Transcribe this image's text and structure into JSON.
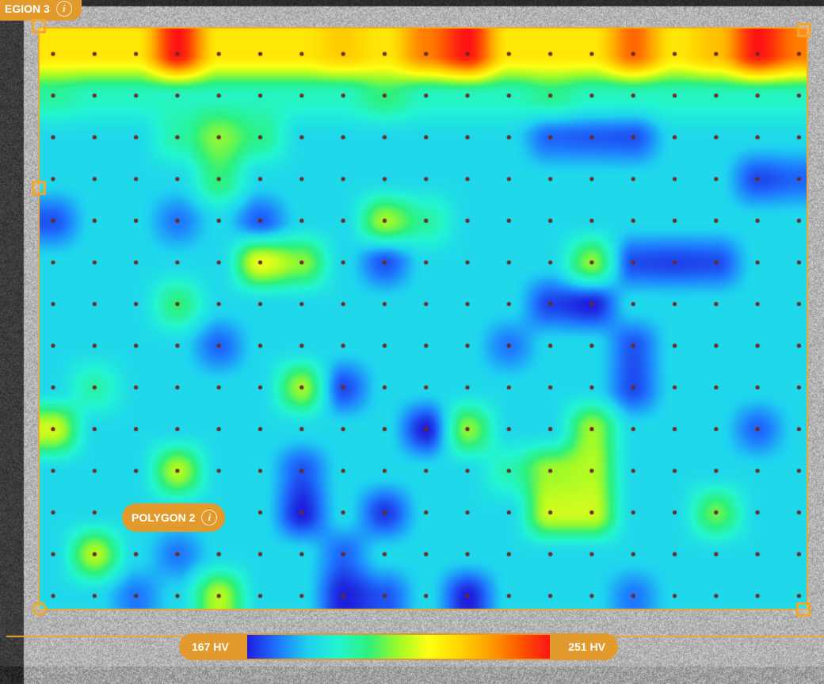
{
  "region_label": {
    "text": "EGION 3",
    "info_icon": "info-icon"
  },
  "polygon_label": {
    "text": "POLYGON 2",
    "info_icon": "info-icon"
  },
  "scale": {
    "min_label": "167 HV",
    "max_label": "251 HV",
    "min_value": 167,
    "max_value": 251,
    "colors": [
      "#1E1EDC",
      "#1E78FF",
      "#1ED2F0",
      "#23F5D2",
      "#2DF07D",
      "#A0FA28",
      "#FFFF14",
      "#FFD700",
      "#FFA000",
      "#FF5A00",
      "#FF1414"
    ]
  },
  "colors": {
    "accent": "#E39A2D",
    "handle": "#F2A62E",
    "dot": "#6A2A2A"
  },
  "heatmap": {
    "rows": 14,
    "cols": 19,
    "background_level": 0.22,
    "top_row_level": 0.66,
    "second_row_level": 0.32,
    "hotspots": [
      {
        "r": 0,
        "c": 3,
        "v": 1.0
      },
      {
        "r": 0,
        "c": 10,
        "v": 1.0
      },
      {
        "r": 0,
        "c": 17,
        "v": 1.0
      },
      {
        "r": 0,
        "c": 9,
        "v": 0.85
      },
      {
        "r": 0,
        "c": 14,
        "v": 0.88
      },
      {
        "r": 0,
        "c": 18,
        "v": 0.85
      },
      {
        "r": 0,
        "c": 16,
        "v": 0.74
      },
      {
        "r": 0,
        "c": 7,
        "v": 0.72
      },
      {
        "r": 1,
        "c": 8,
        "v": 0.4
      },
      {
        "r": 1,
        "c": 12,
        "v": 0.38
      },
      {
        "r": 1,
        "c": 0,
        "v": 0.36
      },
      {
        "r": 2,
        "c": 4,
        "v": 0.48
      },
      {
        "r": 2,
        "c": 3,
        "v": 0.35
      },
      {
        "r": 2,
        "c": 5,
        "v": 0.38
      },
      {
        "r": 2,
        "c": 12,
        "v": 0.08
      },
      {
        "r": 2,
        "c": 13,
        "v": 0.07
      },
      {
        "r": 2,
        "c": 14,
        "v": 0.06
      },
      {
        "r": 3,
        "c": 4,
        "v": 0.4
      },
      {
        "r": 3,
        "c": 17,
        "v": 0.05
      },
      {
        "r": 3,
        "c": 18,
        "v": 0.08
      },
      {
        "r": 4,
        "c": 0,
        "v": 0.06
      },
      {
        "r": 4,
        "c": 5,
        "v": 0.07
      },
      {
        "r": 4,
        "c": 3,
        "v": 0.1
      },
      {
        "r": 4,
        "c": 8,
        "v": 0.5
      },
      {
        "r": 4,
        "c": 9,
        "v": 0.36
      },
      {
        "r": 5,
        "c": 5,
        "v": 0.58
      },
      {
        "r": 5,
        "c": 6,
        "v": 0.48
      },
      {
        "r": 5,
        "c": 8,
        "v": 0.06
      },
      {
        "r": 5,
        "c": 13,
        "v": 0.48
      },
      {
        "r": 5,
        "c": 14,
        "v": 0.05
      },
      {
        "r": 5,
        "c": 15,
        "v": 0.04
      },
      {
        "r": 5,
        "c": 16,
        "v": 0.05
      },
      {
        "r": 6,
        "c": 12,
        "v": 0.04
      },
      {
        "r": 6,
        "c": 13,
        "v": 0.0
      },
      {
        "r": 6,
        "c": 3,
        "v": 0.4
      },
      {
        "r": 7,
        "c": 4,
        "v": 0.08
      },
      {
        "r": 7,
        "c": 14,
        "v": 0.06
      },
      {
        "r": 7,
        "c": 11,
        "v": 0.1
      },
      {
        "r": 8,
        "c": 6,
        "v": 0.5
      },
      {
        "r": 8,
        "c": 7,
        "v": 0.05
      },
      {
        "r": 8,
        "c": 14,
        "v": 0.05
      },
      {
        "r": 8,
        "c": 1,
        "v": 0.35
      },
      {
        "r": 9,
        "c": 0,
        "v": 0.55
      },
      {
        "r": 9,
        "c": 9,
        "v": 0.0
      },
      {
        "r": 9,
        "c": 10,
        "v": 0.48
      },
      {
        "r": 9,
        "c": 13,
        "v": 0.5
      },
      {
        "r": 9,
        "c": 17,
        "v": 0.08
      },
      {
        "r": 10,
        "c": 3,
        "v": 0.52
      },
      {
        "r": 10,
        "c": 6,
        "v": 0.06
      },
      {
        "r": 10,
        "c": 12,
        "v": 0.5
      },
      {
        "r": 10,
        "c": 13,
        "v": 0.52
      },
      {
        "r": 10,
        "c": 11,
        "v": 0.34
      },
      {
        "r": 11,
        "c": 6,
        "v": 0.0
      },
      {
        "r": 11,
        "c": 8,
        "v": 0.03
      },
      {
        "r": 11,
        "c": 12,
        "v": 0.55
      },
      {
        "r": 11,
        "c": 13,
        "v": 0.55
      },
      {
        "r": 11,
        "c": 16,
        "v": 0.45
      },
      {
        "r": 12,
        "c": 1,
        "v": 0.52
      },
      {
        "r": 12,
        "c": 3,
        "v": 0.1
      },
      {
        "r": 12,
        "c": 7,
        "v": 0.08
      },
      {
        "r": 13,
        "c": 2,
        "v": 0.1
      },
      {
        "r": 13,
        "c": 4,
        "v": 0.52
      },
      {
        "r": 13,
        "c": 7,
        "v": 0.0
      },
      {
        "r": 13,
        "c": 10,
        "v": 0.0
      },
      {
        "r": 13,
        "c": 8,
        "v": 0.06
      },
      {
        "r": 13,
        "c": 14,
        "v": 0.1
      }
    ]
  }
}
